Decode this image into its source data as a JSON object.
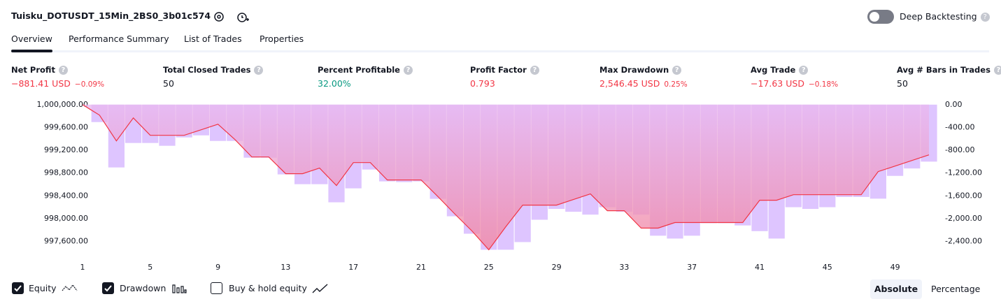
{
  "header": {
    "title": "Tuisku_DOTUSDT_15Min_2BS0_3b01c574",
    "toggle_label": "Deep Backtesting"
  },
  "tabs": [
    "Overview",
    "Performance Summary",
    "List of Trades",
    "Properties"
  ],
  "stats": [
    {
      "label": "Net Profit",
      "value": "−881.41 USD",
      "percent": "−0.09%"
    },
    {
      "label": "Total Closed Trades",
      "value": "50"
    },
    {
      "label": "Percent Profitable",
      "value": "32.00%"
    },
    {
      "label": "Profit Factor",
      "value": "0.793"
    },
    {
      "label": "Max Drawdown",
      "value": "2,546.45 USD",
      "percent": "0.25%"
    },
    {
      "label": "Avg Trade",
      "value": "−17.63 USD",
      "percent": "−0.18%"
    },
    {
      "label": "Avg # Bars in Trades",
      "value": "50"
    }
  ],
  "chart_data": {
    "type": "equity",
    "x": [
      1,
      2,
      3,
      4,
      5,
      6,
      7,
      8,
      9,
      10,
      11,
      12,
      13,
      14,
      15,
      16,
      17,
      18,
      19,
      20,
      21,
      22,
      23,
      24,
      25,
      26,
      27,
      28,
      29,
      30,
      31,
      32,
      33,
      34,
      35,
      36,
      37,
      38,
      39,
      40,
      41,
      42,
      43,
      44,
      45,
      46,
      47,
      48,
      49,
      50,
      51
    ],
    "xlim": [
      0.5,
      51.5
    ],
    "xticks": [
      1,
      5,
      9,
      13,
      17,
      21,
      25,
      29,
      33,
      37,
      41,
      45,
      49
    ],
    "series": [
      {
        "name": "Equity",
        "color": "#f23645",
        "axis": "y",
        "values": [
          1000000,
          999816,
          999363,
          999767,
          999461,
          999461,
          999461,
          999559,
          999657,
          999388,
          999082,
          999082,
          998788,
          998788,
          998886,
          998580,
          998984,
          998984,
          998678,
          998678,
          998678,
          998384,
          998078,
          997784,
          997453.55,
          997857,
          998237,
          998237,
          998237,
          998335,
          998433,
          998139,
          998139,
          997833,
          997833,
          997931,
          997931,
          997931,
          997931,
          997931,
          998322,
          998322,
          998420,
          998420,
          998420,
          998420,
          998420,
          998825,
          998922,
          999020,
          999118.59
        ]
      },
      {
        "name": "Drawdown",
        "color": "#dcc2ff",
        "axis": "y2",
        "values": [
          null,
          -306,
          -1102,
          -673,
          -673,
          -722,
          -575,
          -539,
          -637,
          -637,
          -931,
          -931,
          -1224,
          -1396,
          -1396,
          -1714,
          -1469,
          -1139,
          -1347,
          -1359,
          -1347,
          -1653,
          -1959,
          -2265,
          -2546.45,
          -2546,
          -2412,
          -2020,
          -1830,
          -1880,
          -1930,
          -1800,
          -1880,
          -1930,
          -2300,
          -2350,
          -2300,
          -2080,
          -2080,
          -2120,
          -2220,
          -2350,
          -1800,
          -1830,
          -1800,
          -1620,
          -1620,
          -1650,
          -1250,
          -1120,
          -1000
        ]
      }
    ],
    "ylim": [
      997300,
      1000120
    ],
    "yticks": [
      {
        "value": 1000000,
        "label": "1,000,000.00"
      },
      {
        "value": 999600,
        "label": "999,600.00"
      },
      {
        "value": 999200,
        "label": "999,200.00"
      },
      {
        "value": 998800,
        "label": "998,800.00"
      },
      {
        "value": 998400,
        "label": "998,400.00"
      },
      {
        "value": 998000,
        "label": "998,000.00"
      },
      {
        "value": 997600,
        "label": "997,600.00"
      }
    ],
    "y2lim": [
      -2700,
      120
    ],
    "y2ticks": [
      {
        "value": 0,
        "label": "0.00"
      },
      {
        "value": -400,
        "label": "-400.00"
      },
      {
        "value": -800,
        "label": "-800.00"
      },
      {
        "value": -1200,
        "label": "-1,200.00"
      },
      {
        "value": -1600,
        "label": "-1,600.00"
      },
      {
        "value": -2000,
        "label": "-2,000.00"
      },
      {
        "value": -2400,
        "label": "-2,400.00"
      }
    ]
  },
  "footer": {
    "buy_hold_label": "Buy & hold equity",
    "modes": [
      "Absolute",
      "Percentage"
    ]
  }
}
